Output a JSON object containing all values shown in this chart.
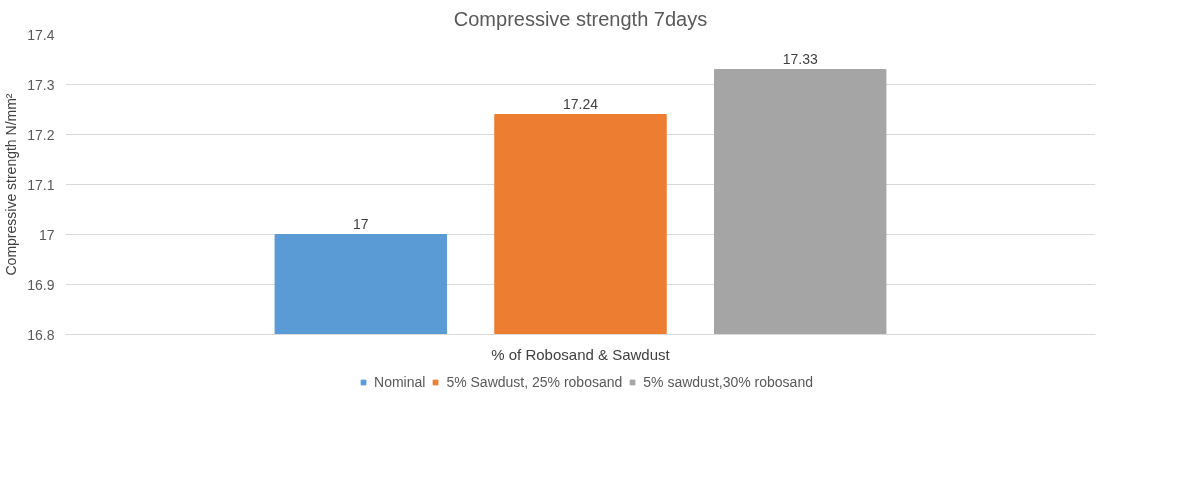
{
  "chart_data": {
    "type": "bar",
    "title": "Compressive strength 7days",
    "xlabel": "% of Robosand & Sawdust",
    "ylabel": "Compressive strength N/mm²",
    "categories": [
      null
    ],
    "series": [
      {
        "name": "Nominal",
        "color": "#5b9bd5",
        "values": [
          17
        ]
      },
      {
        "name": "5% Sawdust, 25% robosand",
        "color": "#ed7d31",
        "values": [
          17.24
        ]
      },
      {
        "name": "5% sawdust,30% robosand",
        "color": "#a5a5a5",
        "values": [
          17.33
        ]
      }
    ],
    "ylim": [
      16.8,
      17.4
    ],
    "yticks": [
      16.8,
      16.9,
      17,
      17.1,
      17.2,
      17.3,
      17.4
    ],
    "grid": "y",
    "legend": "bottom",
    "data_labels": true
  }
}
